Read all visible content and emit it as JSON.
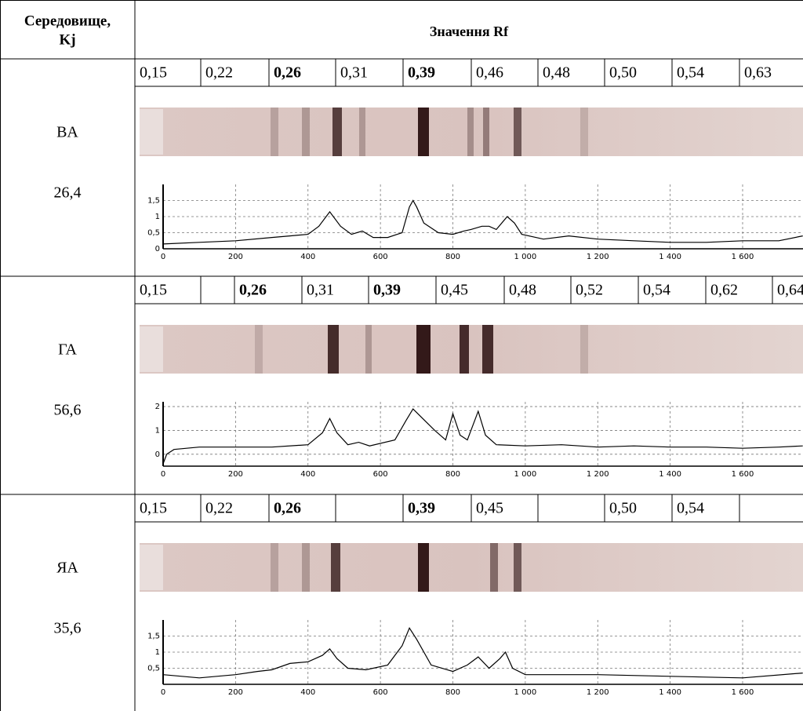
{
  "header": {
    "medium": [
      "Середовище,",
      "Kj"
    ],
    "rf": "Значення Rf"
  },
  "rows": [
    {
      "medium": "BA",
      "kj": "26,4",
      "rf": [
        {
          "text": "0,15"
        },
        {
          "text": "0,22"
        },
        {
          "text": "0,26",
          "bold": true
        },
        {
          "text": "0,31"
        },
        {
          "text": "0,39",
          "bold": true
        },
        {
          "text": "0,46"
        },
        {
          "text": "0,48"
        },
        {
          "text": "0,50"
        },
        {
          "text": "0,54"
        },
        {
          "text": "0,63"
        }
      ],
      "chart": {
        "type": "line",
        "color": "#000000",
        "grid": true,
        "xlim": [
          0,
          1766
        ],
        "ylim": [
          0,
          2.0
        ],
        "xticks": [
          0,
          200,
          400,
          600,
          800,
          {
            "value": 1000,
            "label": "1 000"
          },
          {
            "value": 1200,
            "label": "1 200"
          },
          {
            "value": 1400,
            "label": "1 400"
          },
          {
            "value": 1600,
            "label": "1 600"
          }
        ],
        "yticks": [
          0,
          {
            "value": 0.5,
            "label": "0,5"
          },
          1,
          {
            "value": 1.5,
            "label": "1,5"
          }
        ],
        "x": [
          0,
          100,
          200,
          300,
          350,
          400,
          430,
          460,
          490,
          520,
          550,
          580,
          620,
          660,
          680,
          690,
          700,
          720,
          760,
          800,
          830,
          850,
          880,
          900,
          920,
          950,
          970,
          990,
          1050,
          1120,
          1200,
          1300,
          1400,
          1500,
          1600,
          1700,
          1766
        ],
        "values": [
          0.15,
          0.2,
          0.25,
          0.35,
          0.4,
          0.45,
          0.7,
          1.15,
          0.7,
          0.45,
          0.55,
          0.35,
          0.35,
          0.5,
          1.3,
          1.5,
          1.3,
          0.8,
          0.5,
          0.45,
          0.55,
          0.6,
          0.7,
          0.7,
          0.6,
          1.0,
          0.8,
          0.45,
          0.3,
          0.4,
          0.3,
          0.25,
          0.2,
          0.2,
          0.25,
          0.25,
          0.4
        ]
      }
    },
    {
      "medium": "ГА",
      "kj": "56,6",
      "rf": [
        {
          "text": "0,15"
        },
        null,
        {
          "text": "0,26",
          "bold": true
        },
        {
          "text": "0,31"
        },
        {
          "text": "0,39",
          "bold": true
        },
        {
          "text": "0,45"
        },
        {
          "text": "0,48"
        },
        {
          "text": "0,52"
        },
        {
          "text": "0,54"
        },
        {
          "text": "0,62"
        },
        {
          "text": "0,64"
        }
      ],
      "chart": {
        "type": "line",
        "color": "#000000",
        "grid": true,
        "xlim": [
          0,
          1766
        ],
        "ylim": [
          -0.5,
          2.2
        ],
        "xticks": [
          0,
          200,
          400,
          600,
          800,
          {
            "value": 1000,
            "label": "1 000"
          },
          {
            "value": 1200,
            "label": "1 200"
          },
          {
            "value": 1400,
            "label": "1 400"
          },
          {
            "value": 1600,
            "label": "1 600"
          }
        ],
        "yticks": [
          0,
          1,
          2
        ],
        "x": [
          0,
          10,
          30,
          100,
          200,
          300,
          400,
          440,
          460,
          480,
          510,
          540,
          570,
          640,
          670,
          690,
          710,
          750,
          780,
          800,
          820,
          840,
          870,
          890,
          920,
          1000,
          1100,
          1200,
          1300,
          1400,
          1500,
          1600,
          1700,
          1766
        ],
        "values": [
          -0.4,
          0,
          0.2,
          0.3,
          0.3,
          0.3,
          0.4,
          0.9,
          1.5,
          0.9,
          0.4,
          0.5,
          0.35,
          0.6,
          1.4,
          1.9,
          1.6,
          1.0,
          0.6,
          1.7,
          0.8,
          0.6,
          1.8,
          0.8,
          0.4,
          0.35,
          0.4,
          0.3,
          0.35,
          0.3,
          0.3,
          0.25,
          0.3,
          0.35
        ]
      }
    },
    {
      "medium": "ЯА",
      "kj": "35,6",
      "rf": [
        {
          "text": "0,15"
        },
        {
          "text": "0,22"
        },
        {
          "text": "0,26",
          "bold": true
        },
        null,
        {
          "text": "0,39",
          "bold": true
        },
        {
          "text": "0,45"
        },
        null,
        {
          "text": "0,50"
        },
        {
          "text": "0,54"
        },
        null
      ],
      "chart": {
        "type": "line",
        "color": "#000000",
        "grid": true,
        "xlim": [
          0,
          1766
        ],
        "ylim": [
          0,
          2.0
        ],
        "xticks": [
          0,
          200,
          400,
          600,
          800,
          {
            "value": 1000,
            "label": "1 000"
          },
          {
            "value": 1200,
            "label": "1 200"
          },
          {
            "value": 1400,
            "label": "1 400"
          },
          {
            "value": 1600,
            "label": "1 600"
          }
        ],
        "yticks": [
          {
            "value": 0.5,
            "label": "0,5"
          },
          1,
          {
            "value": 1.5,
            "label": "1,5"
          }
        ],
        "x": [
          0,
          100,
          200,
          260,
          300,
          350,
          400,
          440,
          460,
          480,
          510,
          560,
          620,
          660,
          680,
          700,
          740,
          800,
          840,
          870,
          900,
          930,
          945,
          965,
          1000,
          1200,
          1400,
          1600,
          1766
        ],
        "values": [
          0.3,
          0.2,
          0.3,
          0.4,
          0.45,
          0.65,
          0.7,
          0.9,
          1.1,
          0.8,
          0.5,
          0.45,
          0.6,
          1.2,
          1.75,
          1.4,
          0.6,
          0.4,
          0.6,
          0.85,
          0.5,
          0.8,
          1.0,
          0.5,
          0.3,
          0.3,
          0.25,
          0.2,
          0.35
        ]
      }
    }
  ]
}
